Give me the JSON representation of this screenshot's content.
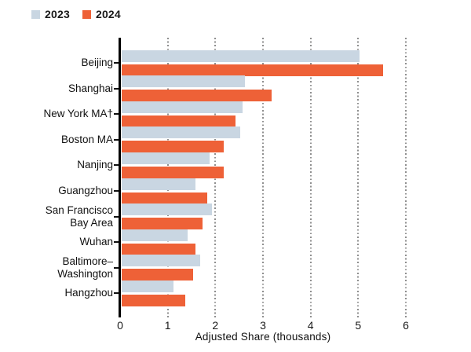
{
  "legend": {
    "items": [
      {
        "label": "2023",
        "color": "#c9d6e2"
      },
      {
        "label": "2024",
        "color": "#ee6137"
      }
    ]
  },
  "chart_data": {
    "type": "bar",
    "orientation": "horizontal",
    "title": "",
    "xlabel": "Adjusted Share (thousands)",
    "ylabel": "",
    "xlim": [
      0,
      6
    ],
    "xticks": [
      0,
      1,
      2,
      3,
      4,
      5,
      6
    ],
    "grid": "vertical-dotted",
    "legend_position": "top-left",
    "categories": [
      "Beijing",
      "Shanghai",
      "New York MA†",
      "Boston MA",
      "Nanjing",
      "Guangzhou",
      "San Francisco\nBay Area",
      "Wuhan",
      "Baltimore–\nWashington",
      "Hangzhou"
    ],
    "series": [
      {
        "name": "2023",
        "color": "#c9d6e2",
        "values": [
          5.0,
          2.6,
          2.55,
          2.5,
          1.85,
          1.55,
          1.9,
          1.4,
          1.65,
          1.1
        ]
      },
      {
        "name": "2024",
        "color": "#ee6137",
        "values": [
          5.5,
          3.15,
          2.4,
          2.15,
          2.15,
          1.8,
          1.7,
          1.55,
          1.5,
          1.35
        ]
      }
    ],
    "colors": {
      "axis": "#000000",
      "text": "#1a1a1a",
      "gridline": "#8f8f8f",
      "background": "#ffffff"
    }
  }
}
